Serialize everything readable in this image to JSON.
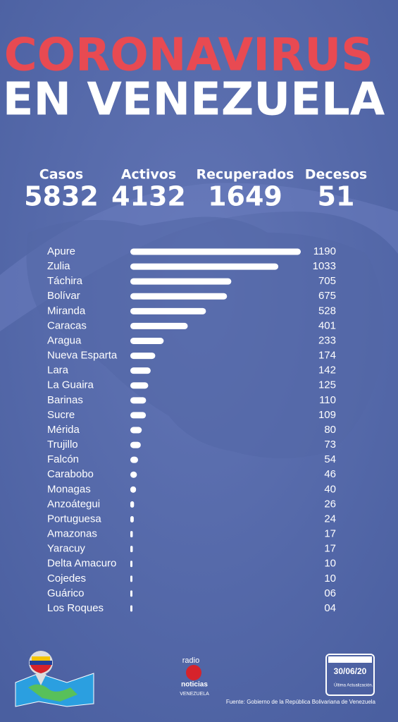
{
  "header": {
    "title_line1": "CORONAVIRUS",
    "title_line2": "EN VENEZUELA"
  },
  "stats": [
    {
      "label": "Casos",
      "value": "5832"
    },
    {
      "label": "Activos",
      "value": "4132"
    },
    {
      "label": "Recuperados",
      "value": "1649"
    },
    {
      "label": "Decesos",
      "value": "51"
    }
  ],
  "chart_data": {
    "type": "bar",
    "orientation": "horizontal",
    "color": "#ffffff",
    "categories": [
      "Apure",
      "Zulia",
      "Táchira",
      "Bolívar",
      "Miranda",
      "Caracas",
      "Aragua",
      "Nueva Esparta",
      "Lara",
      "La Guaira",
      "Barinas",
      "Sucre",
      "Mérida",
      "Trujillo",
      "Falcón",
      "Carabobo",
      "Monagas",
      "Anzoátegui",
      "Portuguesa",
      "Amazonas",
      "Yaracuy",
      "Delta Amacuro",
      "Cojedes",
      "Guárico",
      "Los Roques"
    ],
    "values": [
      1190,
      1033,
      705,
      675,
      528,
      401,
      233,
      174,
      142,
      125,
      110,
      109,
      80,
      73,
      54,
      46,
      40,
      26,
      24,
      17,
      17,
      10,
      10,
      6,
      4
    ],
    "value_labels": [
      "1190",
      "1033",
      "705",
      "675",
      "528",
      "401",
      "233",
      "174",
      "142",
      "125",
      "110",
      "109",
      "80",
      "73",
      "54",
      "46",
      "40",
      "26",
      "24",
      "17",
      "17",
      "10",
      "10",
      "06",
      "04"
    ]
  },
  "footer": {
    "logo_top": "radio",
    "logo_middle": "noticias",
    "logo_bottom": "VENEZUELA",
    "date": "30/06/20",
    "date_caption": "Última Actualización.",
    "source": "Fuente: Gobierno de la República Bolivariana de Venezuela"
  }
}
